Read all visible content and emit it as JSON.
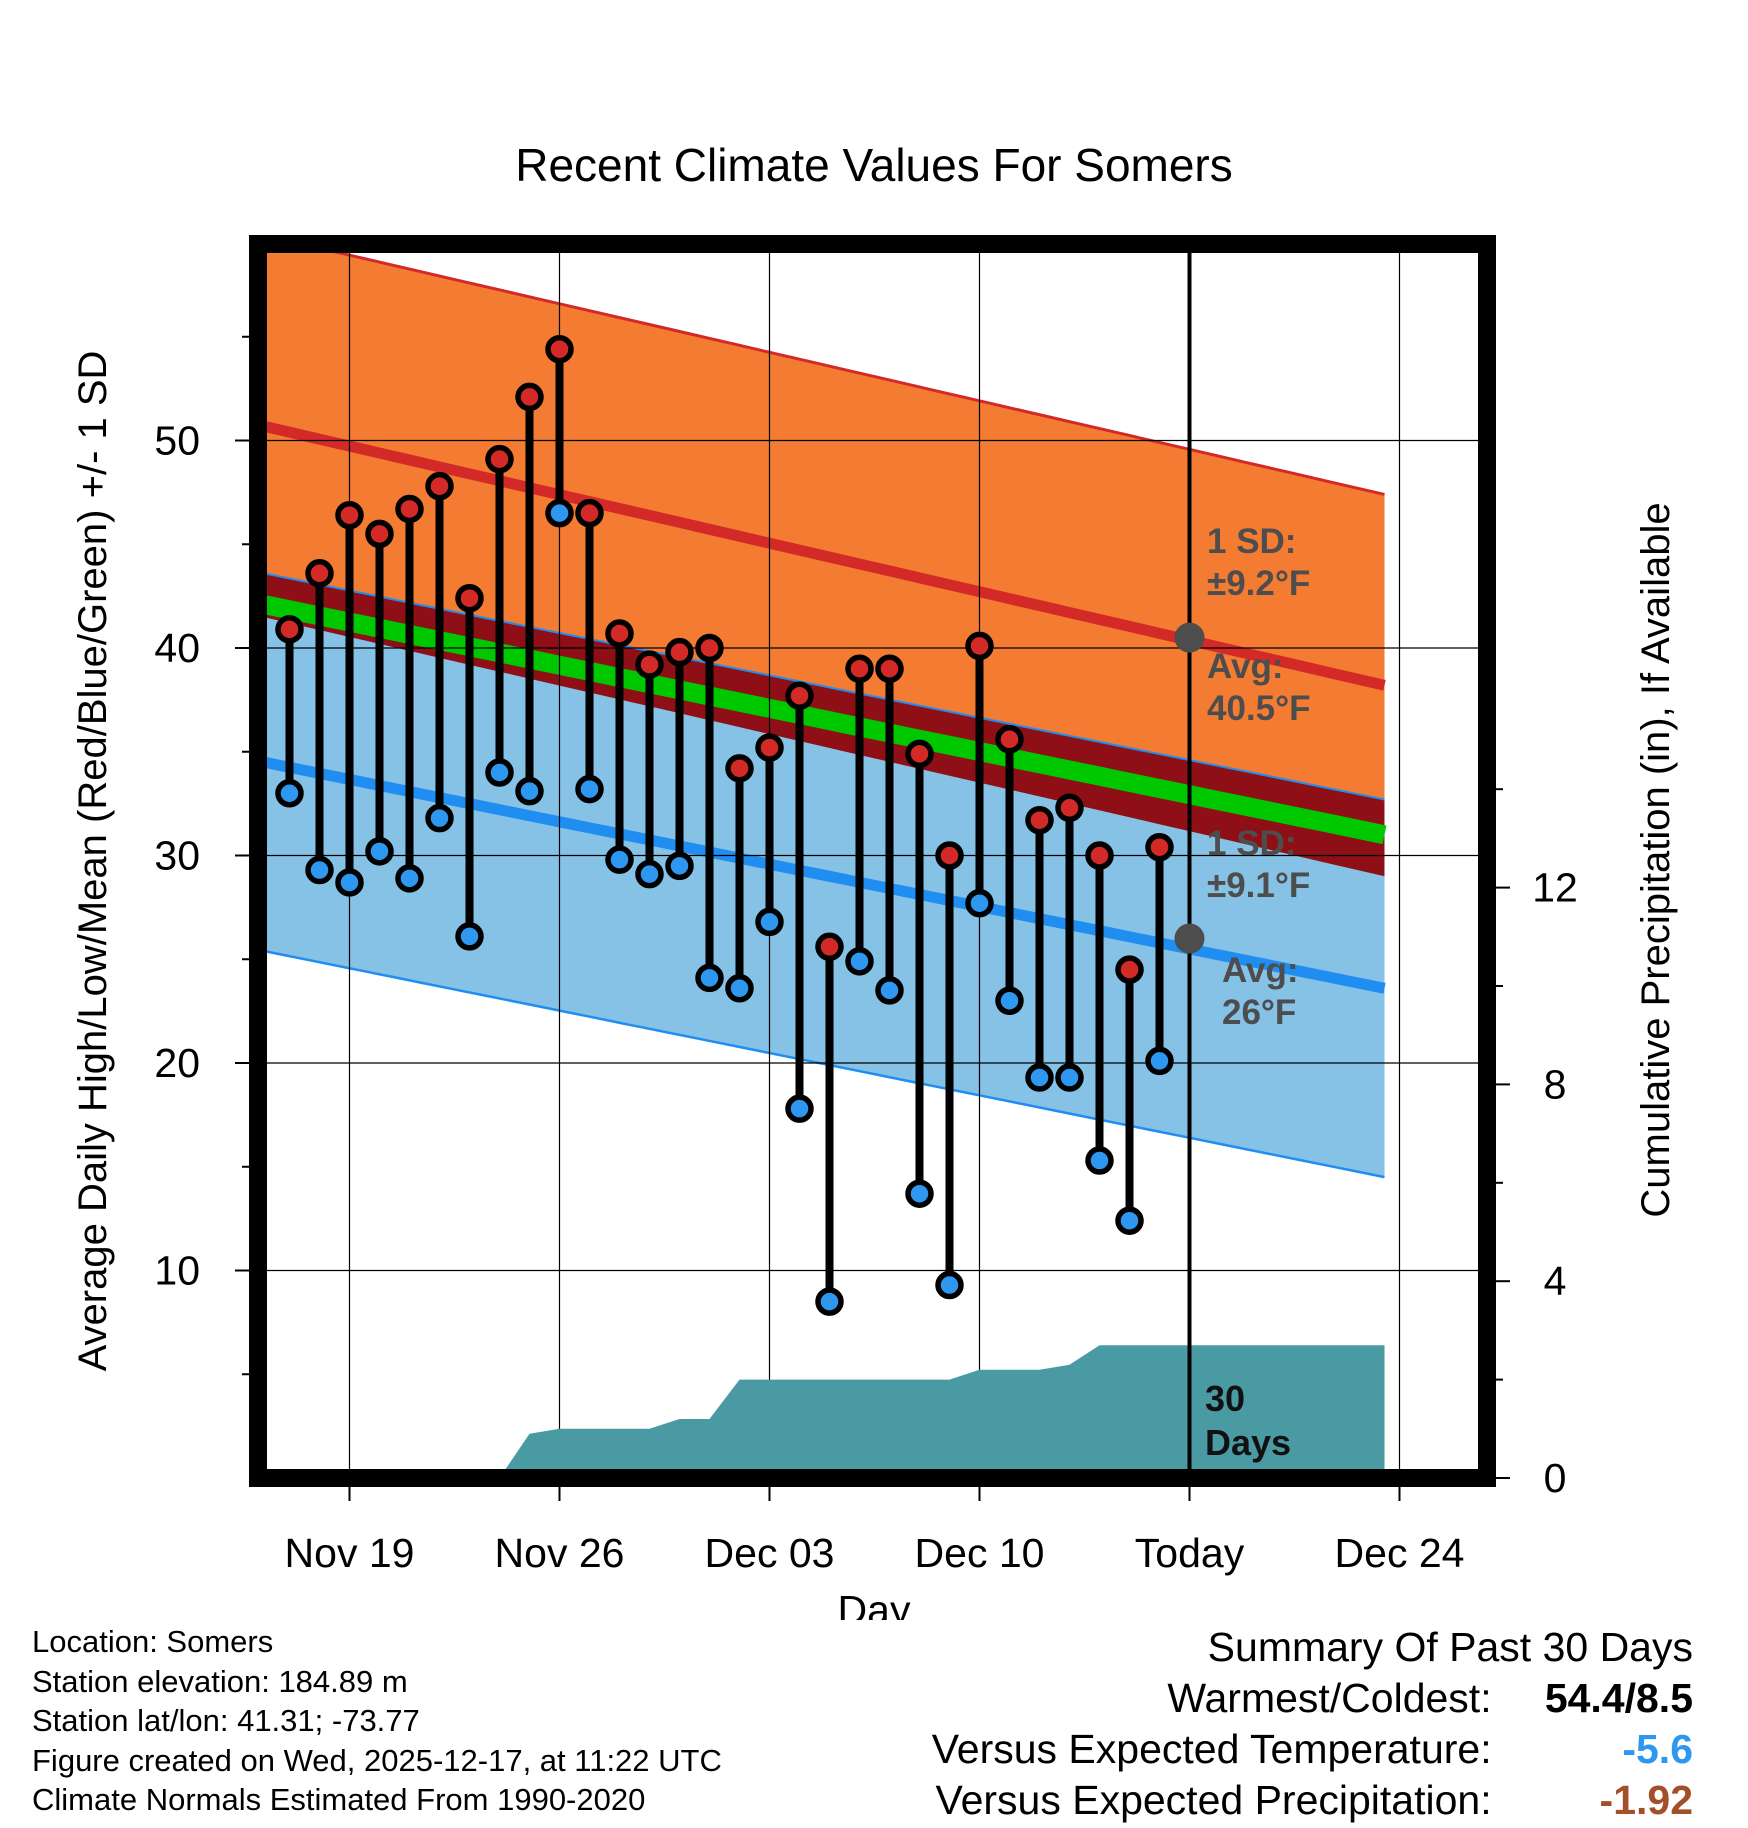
{
  "chart_data": {
    "type": "line",
    "title": "Recent Climate Values For Somers",
    "xlabel": "Day",
    "ylabel": "Average Daily High/Low/Mean (Red/Blue/Green) +/- 1 SD",
    "y2label": "Cumulative Precipitation (in), If Available",
    "xlim": [
      -0.2,
      37.5
    ],
    "ylim": [
      0,
      59.3
    ],
    "y2lim": [
      0,
      23.2
    ],
    "yticks": [
      10,
      20,
      30,
      40,
      50
    ],
    "y2ticks": [
      0,
      4,
      8,
      12
    ],
    "xtick_days": [
      3,
      10,
      17,
      24,
      31,
      38
    ],
    "xtick_labels": [
      "Nov 19",
      "Nov 26",
      "Dec 03",
      "Dec 10",
      "Today",
      "Dec 24"
    ],
    "today_day": 31,
    "days": [
      1,
      2,
      3,
      4,
      5,
      6,
      7,
      8,
      9,
      10,
      11,
      12,
      13,
      14,
      15,
      16,
      17,
      18,
      19,
      20,
      21,
      22,
      23,
      24,
      25,
      26,
      27,
      28,
      29,
      30
    ],
    "highs": [
      40.9,
      43.6,
      46.4,
      45.5,
      46.7,
      47.8,
      42.4,
      49.1,
      52.1,
      54.4,
      46.5,
      40.7,
      39.2,
      39.8,
      40.0,
      34.2,
      35.2,
      37.7,
      25.6,
      39.0,
      39.0,
      34.9,
      30.0,
      40.1,
      35.6,
      31.7,
      32.3,
      30.0,
      24.5,
      30.4
    ],
    "lows": [
      33.0,
      29.3,
      28.7,
      30.2,
      28.9,
      31.8,
      26.1,
      34.0,
      33.1,
      46.5,
      33.2,
      29.8,
      29.1,
      29.5,
      24.1,
      23.6,
      26.8,
      17.8,
      8.5,
      24.9,
      23.5,
      13.7,
      9.3,
      27.7,
      23.0,
      19.3,
      19.3,
      15.3,
      12.4,
      20.1
    ],
    "normal_high": {
      "start": 50.8,
      "end": 38.2
    },
    "normal_high_sd": 9.2,
    "normal_low": {
      "start": 34.6,
      "end": 23.6
    },
    "normal_low_sd": 9.1,
    "normal_mean": {
      "start": 42.2,
      "end": 31.0
    },
    "precip_cumulative": [
      [
        8.0,
        0
      ],
      [
        9.0,
        0.9
      ],
      [
        10.0,
        1.0
      ],
      [
        11.0,
        1.0
      ],
      [
        12.0,
        1.0
      ],
      [
        13.0,
        1.0
      ],
      [
        14.0,
        1.2
      ],
      [
        15.0,
        1.2
      ],
      [
        16.0,
        2.0
      ],
      [
        17.0,
        2.0
      ],
      [
        18.0,
        2.0
      ],
      [
        19.0,
        2.0
      ],
      [
        20.0,
        2.0
      ],
      [
        21.0,
        2.0
      ],
      [
        22.0,
        2.0
      ],
      [
        23.0,
        2.0
      ],
      [
        24.0,
        2.2
      ],
      [
        25.0,
        2.2
      ],
      [
        26.0,
        2.2
      ],
      [
        27.0,
        2.3
      ],
      [
        28.0,
        2.7
      ],
      [
        29.0,
        2.7
      ],
      [
        30.0,
        2.7
      ],
      [
        31.0,
        2.7
      ],
      [
        37.5,
        2.7
      ]
    ],
    "annotations": {
      "high_sd_label": "1 SD:",
      "high_sd_value": "±9.2°F",
      "high_avg_label": "Avg:",
      "high_avg_value": "40.5°F",
      "low_sd_label": "1 SD:",
      "low_sd_value": "±9.1°F",
      "low_avg_label": "Avg:",
      "low_avg_value": "26°F",
      "precip_days_num": "30",
      "precip_days_label": "Days"
    },
    "today_high_avg": 40.5,
    "today_low_avg": 26.0,
    "colors": {
      "high_band": "#f47b32",
      "high_line": "#d42a27",
      "low_band": "#86c1e6",
      "low_line": "#1f8ef0",
      "mean_band": "#8e1016",
      "mean_line": "#00c800",
      "precip": "#4a9aa3",
      "high_marker": "#d42a27",
      "low_marker": "#2e97ef",
      "annotation": "#4d4d4d"
    }
  },
  "info": {
    "location": "Location: Somers",
    "elevation": "Station elevation: 184.89 m",
    "latlon": "Station lat/lon: 41.31; -73.77",
    "created": "Figure created on Wed, 2025-12-17, at 11:22 UTC",
    "normals": "Climate Normals Estimated From 1990-2020"
  },
  "summary": {
    "title": "Summary Of Past 30 Days",
    "warm_cold_label": "Warmest/Coldest:",
    "warm_cold_value": "54.4/8.5",
    "temp_label": "Versus Expected Temperature:",
    "temp_value": "-5.6",
    "temp_color": "#2e97ef",
    "precip_label": "Versus Expected Precipitation:",
    "precip_value": "-1.92",
    "precip_color": "#a3502a"
  }
}
